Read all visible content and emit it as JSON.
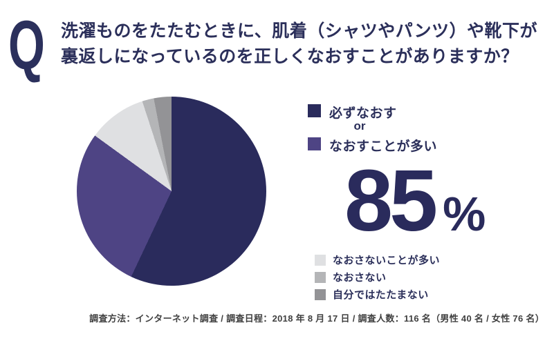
{
  "colors": {
    "navy": "#2a2b5c",
    "purple": "#4e4484",
    "light_gray": "#dfe0e2",
    "mid_gray": "#b4b5b7",
    "dark_gray": "#939396",
    "text_navy": "#2b2f5a",
    "footer_text": "#404040",
    "background": "#ffffff"
  },
  "question": {
    "mark": "Q",
    "line1": "洗濯ものをたたむときに、肌着（シャツやパンツ）や靴下が",
    "line2": "裏返しになっているのを正しくなおすことがありますか？"
  },
  "chart_data": {
    "type": "pie",
    "title": "洗濯ものをたたむときに、肌着（シャツやパンツ）や靴下が裏返しになっているのを正しくなおすことがありますか？",
    "start_angle_deg": 0,
    "direction": "clockwise",
    "slices": [
      {
        "label": "必ずなおす",
        "value_pct": 57,
        "color": "#2a2b5c"
      },
      {
        "label": "なおすことが多い",
        "value_pct": 28,
        "color": "#4e4484"
      },
      {
        "label": "なおさないことが多い",
        "value_pct": 10,
        "color": "#dfe0e2"
      },
      {
        "label": "なおさない",
        "value_pct": 2,
        "color": "#b4b5b7"
      },
      {
        "label": "自分ではたたまない",
        "value_pct": 3,
        "color": "#939396"
      }
    ],
    "highlight": {
      "labels": [
        "必ずなおす",
        "なおすことが多い"
      ],
      "combined_pct": 85
    },
    "legend_position": "right"
  },
  "legend_primary": {
    "connector": "or"
  },
  "stat": {
    "value": "85",
    "unit": "%"
  },
  "footer": {
    "text": "調査方法：インターネット調査 / 調査日程：2018 年 8 月 17 日 / 調査人数：116 名（男性 40 名 / 女性 76 名）"
  }
}
